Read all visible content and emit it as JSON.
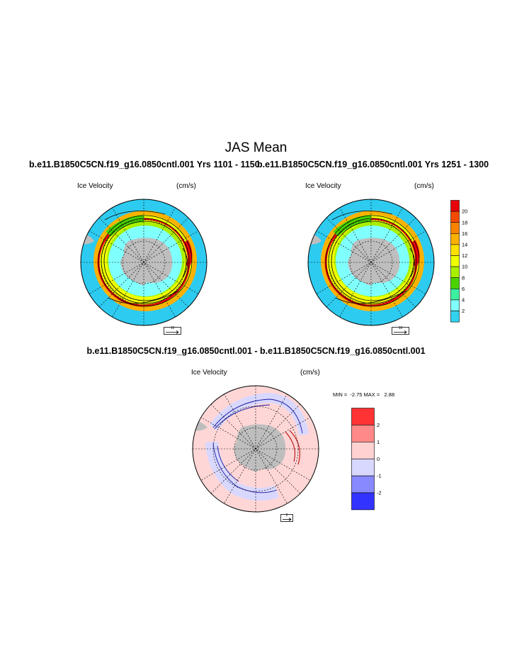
{
  "main_title": "JAS Mean",
  "left_panel": {
    "case_title": "b.e11.B1850C5CN.f19_g16.0850cntl.001  Yrs 1101 - 1150",
    "field_label": "Ice Velocity",
    "units": "(cm/s)",
    "ref_vector": "10"
  },
  "right_panel": {
    "case_title": "b.e11.B1850C5CN.f19_g16.0850cntl.001  Yrs 1251 - 1300",
    "field_label": "Ice Velocity",
    "units": "(cm/s)",
    "ref_vector": "10"
  },
  "diff_panel": {
    "title": "b.e11.B1850C5CN.f19_g16.0850cntl.001 - b.e11.B1850C5CN.f19_g16.0850cntl.001",
    "field_label": "Ice Velocity",
    "units": "(cm/s)",
    "stats": "MIN =  -2.75 MAX =   2.88",
    "ref_vector": "2"
  },
  "colorbar_main": {
    "labels": [
      "20",
      "18",
      "16",
      "14",
      "12",
      "10",
      "8",
      "6",
      "4",
      "2"
    ],
    "colors": [
      "#e8000b",
      "#f44a00",
      "#f98200",
      "#fbb100",
      "#fde000",
      "#f0ff00",
      "#a8f000",
      "#49d400",
      "#3df0a0",
      "#80ffff",
      "#30d2f0"
    ]
  },
  "colorbar_diff": {
    "labels": [
      "2",
      "1",
      "0",
      "-1",
      "-2"
    ],
    "colors": [
      "#ff3333",
      "#ff8888",
      "#ffd2d2",
      "#d8d8ff",
      "#8888ff",
      "#3333ff"
    ]
  },
  "map_colors": {
    "ocean": "#2dcbf0",
    "land": "#bebebe",
    "diff_background": "#ffd6d6",
    "diff_negative_band": "#d8d8ff"
  }
}
